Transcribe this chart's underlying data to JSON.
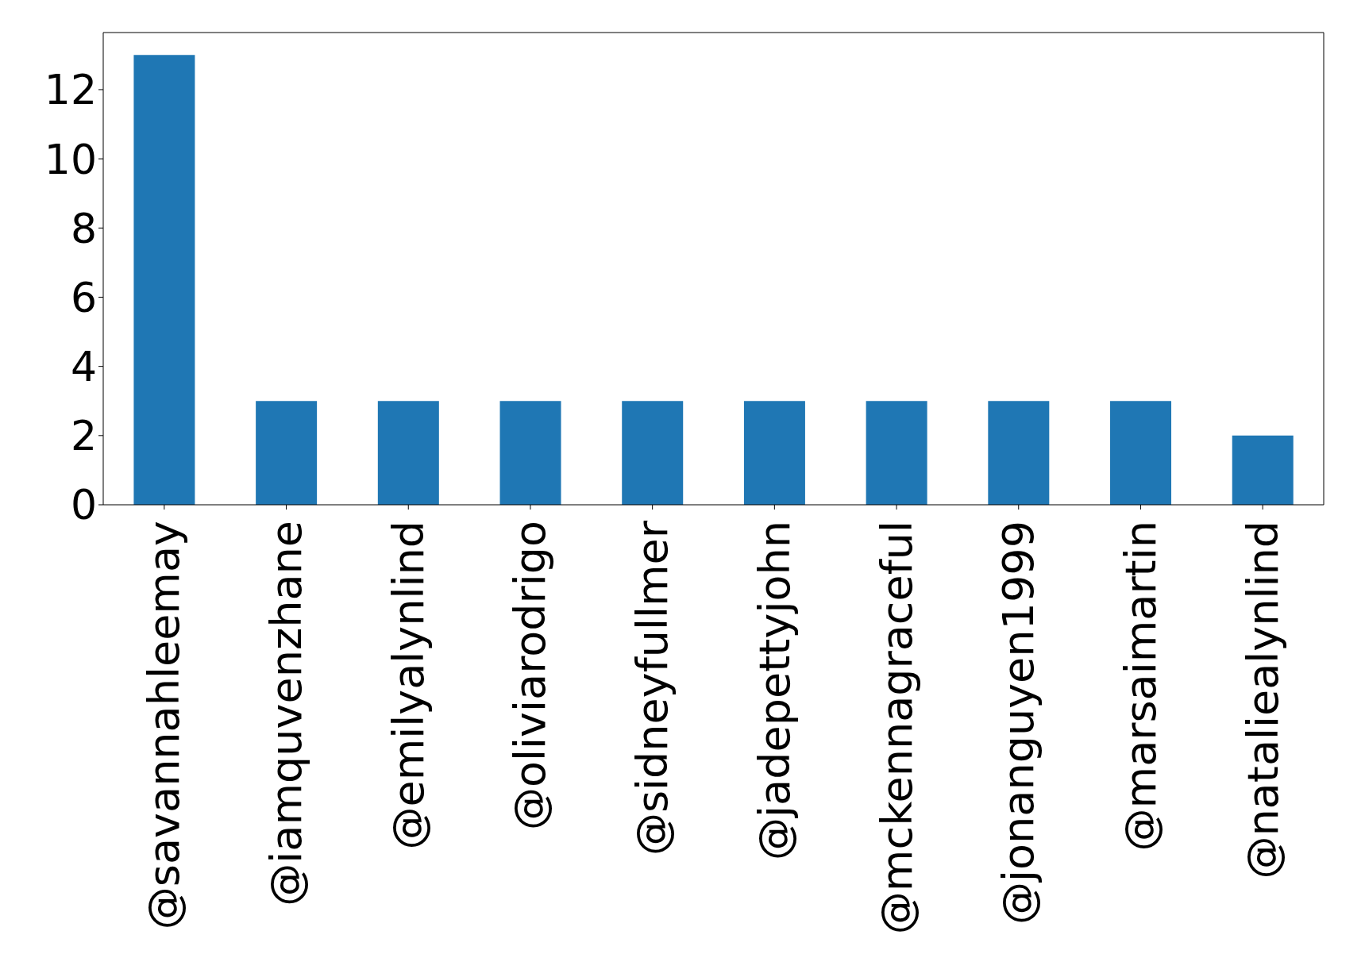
{
  "chart_data": {
    "type": "bar",
    "categories": [
      "@savannahleemay",
      "@iamquvenzhane",
      "@emilyalynlind",
      "@oliviarodrigo",
      "@sidneyfullmer",
      "@jadepettyjohn",
      "@mckennagraceful",
      "@jonanguyen1999",
      "@marsaimartin",
      "@nataliealynlind"
    ],
    "values": [
      13,
      3,
      3,
      3,
      3,
      3,
      3,
      3,
      3,
      2
    ],
    "color": "#1f77b4",
    "ylim": [
      0,
      13.65
    ],
    "yticks": [
      0,
      2,
      4,
      6,
      8,
      10,
      12
    ]
  }
}
